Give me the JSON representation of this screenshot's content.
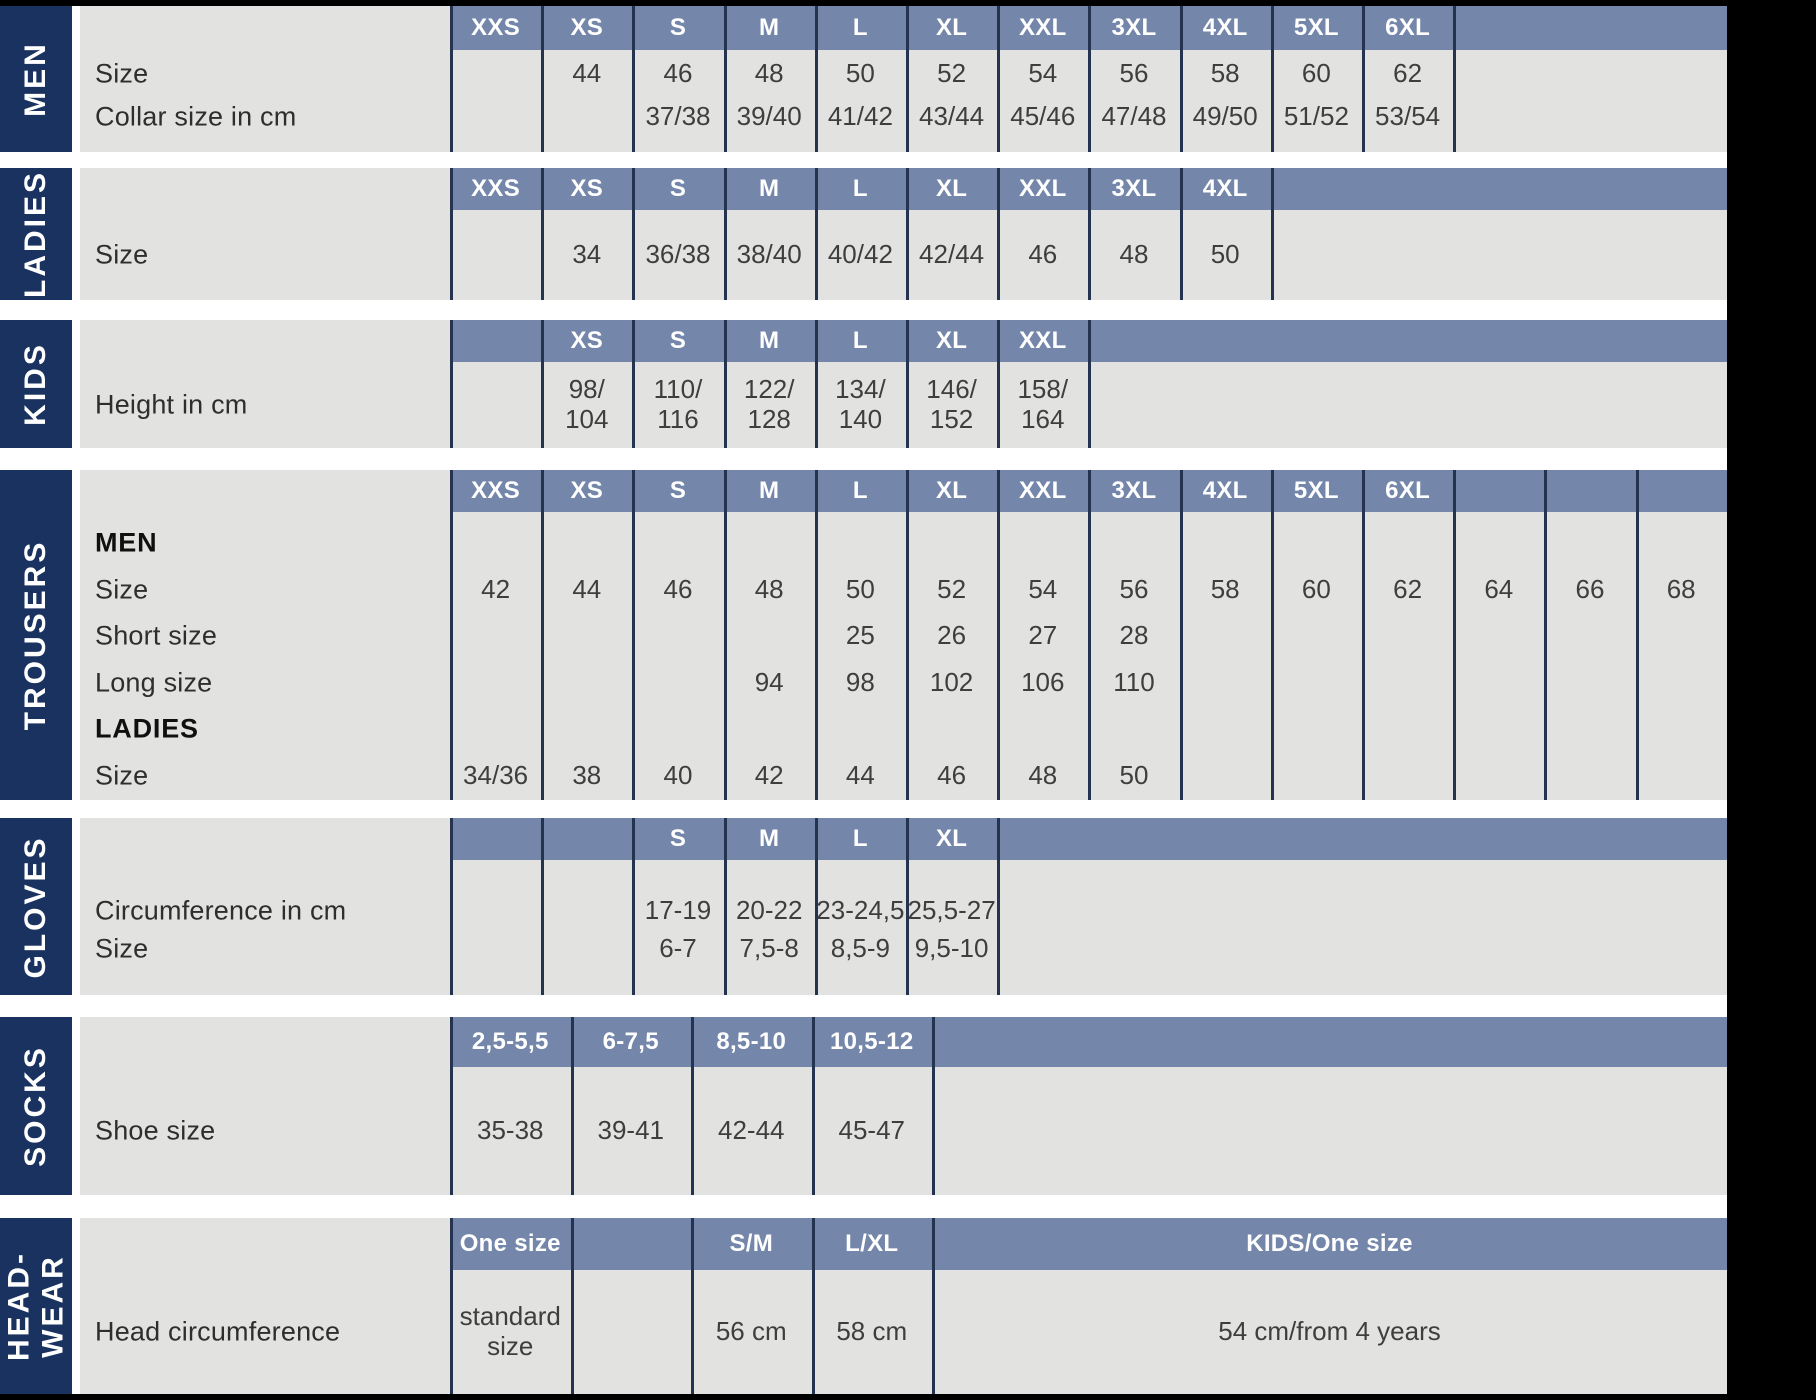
{
  "colors": {
    "navy": "#1a325f",
    "header_blue": "#7487ab",
    "body_gray": "#e2e2e1",
    "divider": "#243350",
    "gap_white": "#ffffff",
    "outer_black": "#000000",
    "header_text": "#ffffff",
    "value_text": "#3e3e3e"
  },
  "sections": [
    {
      "id": "men",
      "label": "MEN",
      "header": [
        "XXS",
        "XS",
        "S",
        "M",
        "L",
        "XL",
        "XXL",
        "3XL",
        "4XL",
        "5XL",
        "6XL"
      ],
      "rows": [
        {
          "label": "Size",
          "bold": false,
          "values": [
            "",
            "44",
            "46",
            "48",
            "50",
            "52",
            "54",
            "56",
            "58",
            "60",
            "62"
          ]
        },
        {
          "label": "Collar size in cm",
          "bold": false,
          "values": [
            "",
            "",
            "37/38",
            "39/40",
            "41/42",
            "43/44",
            "45/46",
            "47/48",
            "49/50",
            "51/52",
            "53/54"
          ]
        }
      ]
    },
    {
      "id": "ladies",
      "label": "LADIES",
      "header": [
        "XXS",
        "XS",
        "S",
        "M",
        "L",
        "XL",
        "XXL",
        "3XL",
        "4XL"
      ],
      "rows": [
        {
          "label": "Size",
          "bold": false,
          "values": [
            "",
            "34",
            "36/38",
            "38/40",
            "40/42",
            "42/44",
            "46",
            "48",
            "50"
          ]
        }
      ]
    },
    {
      "id": "kids",
      "label": "KIDS",
      "header": [
        "",
        "XS",
        "S",
        "M",
        "L",
        "XL",
        "XXL"
      ],
      "rows": [
        {
          "label": "Height in cm",
          "bold": false,
          "values": [
            "",
            "98/\n104",
            "110/\n116",
            "122/\n128",
            "134/\n140",
            "146/\n152",
            "158/\n164"
          ]
        }
      ]
    },
    {
      "id": "trousers",
      "label": "TROUSERS",
      "header": [
        "XXS",
        "XS",
        "S",
        "M",
        "L",
        "XL",
        "XXL",
        "3XL",
        "4XL",
        "5XL",
        "6XL",
        "",
        "",
        ""
      ],
      "rows": [
        {
          "label": "MEN",
          "bold": true,
          "values": []
        },
        {
          "label": "Size",
          "bold": false,
          "values": [
            "42",
            "44",
            "46",
            "48",
            "50",
            "52",
            "54",
            "56",
            "58",
            "60",
            "62",
            "64",
            "66",
            "68"
          ]
        },
        {
          "label": "Short size",
          "bold": false,
          "values": [
            "",
            "",
            "",
            "",
            "25",
            "26",
            "27",
            "28"
          ]
        },
        {
          "label": "Long size",
          "bold": false,
          "values": [
            "",
            "",
            "",
            "94",
            "98",
            "102",
            "106",
            "110"
          ]
        },
        {
          "label": "LADIES",
          "bold": true,
          "values": []
        },
        {
          "label": "Size",
          "bold": false,
          "values": [
            "34/36",
            "38",
            "40",
            "42",
            "44",
            "46",
            "48",
            "50"
          ]
        }
      ]
    },
    {
      "id": "gloves",
      "label": "GLOVES",
      "header": [
        "",
        "",
        "S",
        "M",
        "L",
        "XL"
      ],
      "rows": [
        {
          "label": "Circumference in cm",
          "bold": false,
          "values": [
            "",
            "",
            "17-19",
            "20-22",
            "23-24,5",
            "25,5-27"
          ]
        },
        {
          "label": "Size",
          "bold": false,
          "values": [
            "",
            "",
            "6-7",
            "7,5-8",
            "8,5-9",
            "9,5-10"
          ]
        }
      ]
    },
    {
      "id": "socks",
      "label": "SOCKS",
      "header": [
        "2,5-5,5",
        "6-7,5",
        "8,5-10",
        "10,5-12"
      ],
      "rows": [
        {
          "label": "Shoe size",
          "bold": false,
          "values": [
            "35-38",
            "39-41",
            "42-44",
            "45-47"
          ]
        }
      ]
    },
    {
      "id": "headwear",
      "label": "HEAD-\nWEAR",
      "header": [
        "One size",
        "",
        "S/M",
        "L/XL",
        "KIDS/One size"
      ],
      "rows": [
        {
          "label": "Head circumference",
          "bold": false,
          "values": [
            "standard\nsize",
            "",
            "56 cm",
            "58 cm",
            "54 cm/from 4 years"
          ]
        }
      ]
    }
  ]
}
